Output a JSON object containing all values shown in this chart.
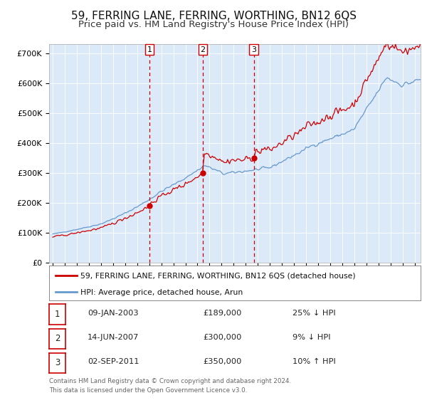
{
  "title": "59, FERRING LANE, FERRING, WORTHING, BN12 6QS",
  "subtitle": "Price paid vs. HM Land Registry's House Price Index (HPI)",
  "title_fontsize": 11,
  "subtitle_fontsize": 9.5,
  "background_color": "#ffffff",
  "plot_bg_color": "#dce9f8",
  "ylim": [
    0,
    730000
  ],
  "yticks": [
    0,
    100000,
    200000,
    300000,
    400000,
    500000,
    600000,
    700000
  ],
  "ytick_labels": [
    "£0",
    "£100K",
    "£200K",
    "£300K",
    "£400K",
    "£500K",
    "£600K",
    "£700K"
  ],
  "xlim_start": 1994.7,
  "xlim_end": 2025.5,
  "transactions": [
    {
      "num": 1,
      "date_dec": 2003.03,
      "price": 189000,
      "label": "1",
      "date_str": "09-JAN-2003",
      "price_str": "£189,000",
      "hpi_rel": "25% ↓ HPI"
    },
    {
      "num": 2,
      "date_dec": 2007.45,
      "price": 300000,
      "label": "2",
      "date_str": "14-JUN-2007",
      "price_str": "£300,000",
      "hpi_rel": "9% ↓ HPI"
    },
    {
      "num": 3,
      "date_dec": 2011.67,
      "price": 350000,
      "label": "3",
      "date_str": "02-SEP-2011",
      "price_str": "£350,000",
      "hpi_rel": "10% ↑ HPI"
    }
  ],
  "legend_line1": "59, FERRING LANE, FERRING, WORTHING, BN12 6QS (detached house)",
  "legend_line2": "HPI: Average price, detached house, Arun",
  "footer1": "Contains HM Land Registry data © Crown copyright and database right 2024.",
  "footer2": "This data is licensed under the Open Government Licence v3.0.",
  "red_line_color": "#cc0000",
  "blue_line_color": "#6699cc",
  "marker_color": "#cc0000",
  "vline_color": "#cc0000",
  "table_rows": [
    [
      "1",
      "09-JAN-2003",
      "£189,000",
      "25% ↓ HPI"
    ],
    [
      "2",
      "14-JUN-2007",
      "£300,000",
      "9% ↓ HPI"
    ],
    [
      "3",
      "02-SEP-2011",
      "£350,000",
      "10% ↑ HPI"
    ]
  ]
}
